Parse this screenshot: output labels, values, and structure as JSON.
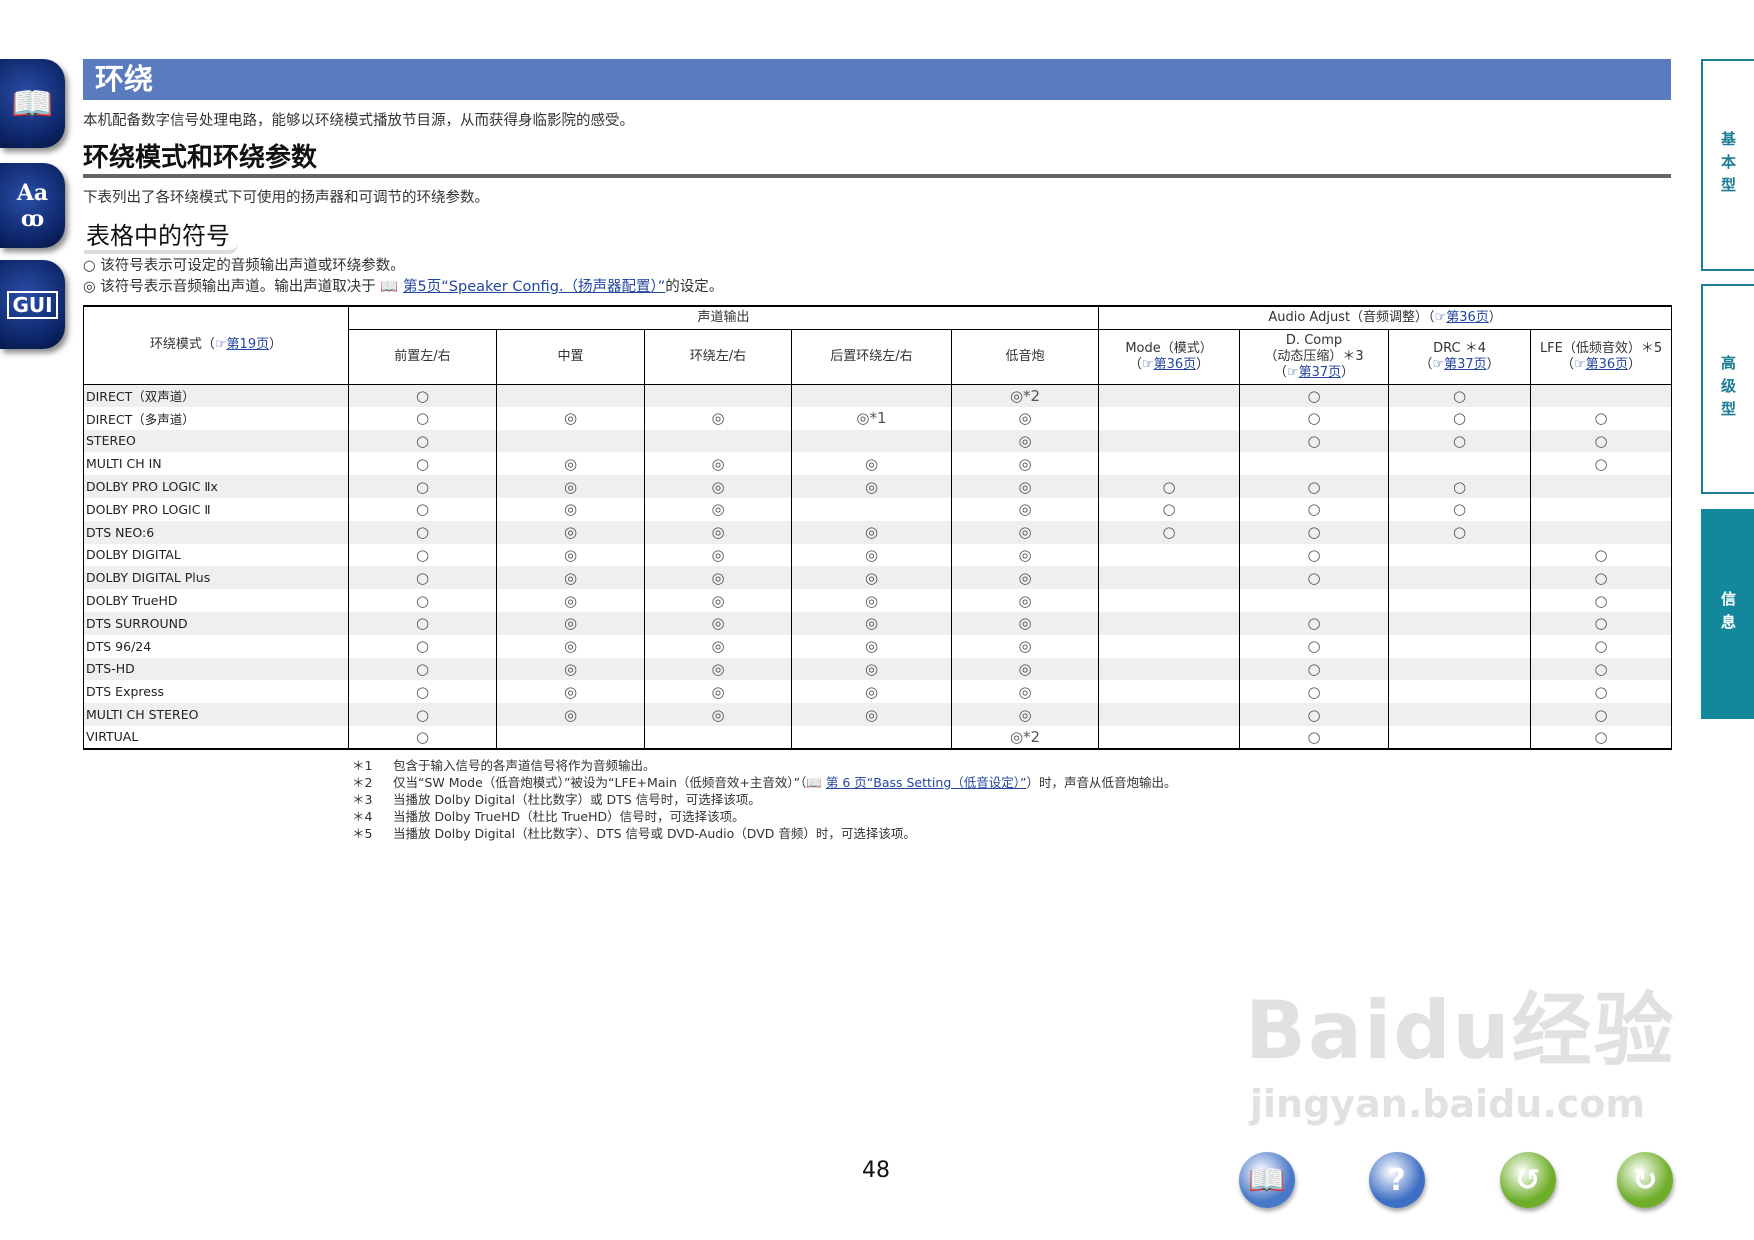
{
  "side_icons": [
    {
      "name": "manual",
      "glyph": "📖"
    },
    {
      "name": "glossary",
      "glyph": "Aa"
    },
    {
      "name": "gui",
      "glyph": "GUI"
    }
  ],
  "right_tabs": [
    "基本型",
    "高级型",
    "信息"
  ],
  "title": "环绕",
  "intro": "本机配备数字信号处理电路，能够以环绕模式播放节目源，从而获得身临影院的感受。",
  "section_title": "环绕模式和环绕参数",
  "section_desc": "下表列出了各环绕模式下可使用的扬声器和可调节的环绕参数。",
  "symbols_title": "表格中的符号",
  "legend": {
    "line1": "○ 该符号表示可设定的音频输出声道或环绕参数。",
    "line2_pre": "◎ 该符号表示音频输出声道。输出声道取决于",
    "line2_link": "第5页“Speaker Config.（扬声器配置）”",
    "line2_post": "的设定。"
  },
  "table": {
    "mode_header": {
      "pre": "环绕模式（",
      "link": "第19页",
      "post": "）"
    },
    "group_channel": "声道输出",
    "group_audio": {
      "pre": "Audio Adjust（音频调整）（",
      "link": "第36页",
      "post": "）"
    },
    "columns": [
      {
        "label": "前置左/右"
      },
      {
        "label": "中置"
      },
      {
        "label": "环绕左/右"
      },
      {
        "label": "后置环绕左/右"
      },
      {
        "label": "低音炮"
      },
      {
        "label": "Mode（模式）",
        "link": "第36页"
      },
      {
        "label": "D. Comp",
        "label2": "（动态压缩）＊3",
        "link": "第37页"
      },
      {
        "label": "DRC ＊4",
        "link": "第37页"
      },
      {
        "label": "LFE（低频音效）＊5",
        "link": "第36页"
      }
    ],
    "rows": [
      {
        "mode": "DIRECT（双声道）",
        "cells": [
          "○",
          "",
          "",
          "",
          "◎*2",
          "",
          "○",
          "○",
          ""
        ]
      },
      {
        "mode": "DIRECT（多声道）",
        "cells": [
          "○",
          "◎",
          "◎",
          "◎*1",
          "◎",
          "",
          "○",
          "○",
          "○"
        ]
      },
      {
        "mode": "STEREO",
        "cells": [
          "○",
          "",
          "",
          "",
          "◎",
          "",
          "○",
          "○",
          "○"
        ]
      },
      {
        "mode": "MULTI CH IN",
        "cells": [
          "○",
          "◎",
          "◎",
          "◎",
          "◎",
          "",
          "",
          "",
          "○"
        ]
      },
      {
        "mode": "DOLBY PRO LOGIC Ⅱx",
        "cells": [
          "○",
          "◎",
          "◎",
          "◎",
          "◎",
          "○",
          "○",
          "○",
          ""
        ]
      },
      {
        "mode": "DOLBY PRO LOGIC Ⅱ",
        "cells": [
          "○",
          "◎",
          "◎",
          "",
          "◎",
          "○",
          "○",
          "○",
          ""
        ]
      },
      {
        "mode": "DTS NEO:6",
        "cells": [
          "○",
          "◎",
          "◎",
          "◎",
          "◎",
          "○",
          "○",
          "○",
          ""
        ]
      },
      {
        "mode": "DOLBY DIGITAL",
        "cells": [
          "○",
          "◎",
          "◎",
          "◎",
          "◎",
          "",
          "○",
          "",
          "○"
        ]
      },
      {
        "mode": "DOLBY DIGITAL Plus",
        "cells": [
          "○",
          "◎",
          "◎",
          "◎",
          "◎",
          "",
          "○",
          "",
          "○"
        ]
      },
      {
        "mode": "DOLBY TrueHD",
        "cells": [
          "○",
          "◎",
          "◎",
          "◎",
          "◎",
          "",
          "",
          "",
          "○"
        ]
      },
      {
        "mode": "DTS SURROUND",
        "cells": [
          "○",
          "◎",
          "◎",
          "◎",
          "◎",
          "",
          "○",
          "",
          "○"
        ]
      },
      {
        "mode": "DTS 96/24",
        "cells": [
          "○",
          "◎",
          "◎",
          "◎",
          "◎",
          "",
          "○",
          "",
          "○"
        ]
      },
      {
        "mode": "DTS-HD",
        "cells": [
          "○",
          "◎",
          "◎",
          "◎",
          "◎",
          "",
          "○",
          "",
          "○"
        ]
      },
      {
        "mode": "DTS Express",
        "cells": [
          "○",
          "◎",
          "◎",
          "◎",
          "◎",
          "",
          "○",
          "",
          "○"
        ]
      },
      {
        "mode": "MULTI CH STEREO",
        "cells": [
          "○",
          "◎",
          "◎",
          "◎",
          "◎",
          "",
          "○",
          "",
          "○"
        ]
      },
      {
        "mode": "VIRTUAL",
        "cells": [
          "○",
          "",
          "",
          "",
          "◎*2",
          "",
          "○",
          "",
          "○"
        ]
      }
    ]
  },
  "footnotes": [
    {
      "key": "＊1",
      "text": "包含于输入信号的各声道信号将作为音频输出。"
    },
    {
      "key": "＊2",
      "text": "仅当“SW Mode（低音炮模式）”被设为“LFE+Main（低频音效+主音效）”（",
      "link": "第 6 页“Bass Setting（低音设定）”",
      "post": "）时，声音从低音炮输出。"
    },
    {
      "key": "＊3",
      "text": "当播放 Dolby Digital（杜比数字）或 DTS 信号时，可选择该项。"
    },
    {
      "key": "＊4",
      "text": "当播放 Dolby TrueHD（杜比 TrueHD）信号时，可选择该项。"
    },
    {
      "key": "＊5",
      "text": "当播放 Dolby Digital（杜比数字）、DTS 信号或 DVD-Audio（DVD 音频）时，可选择该项。"
    }
  ],
  "page_number": "48",
  "nav_buttons": [
    {
      "name": "contents",
      "glyph": "📖",
      "color": "#4a78c8"
    },
    {
      "name": "help",
      "glyph": "?",
      "color": "#3f6fc4"
    },
    {
      "name": "back",
      "glyph": "↺",
      "color": "#6fae2a"
    },
    {
      "name": "forward",
      "glyph": "↻",
      "color": "#6fae2a"
    }
  ],
  "watermark": {
    "line1": "Baidu经验",
    "line2": "jingyan.baidu.com"
  }
}
